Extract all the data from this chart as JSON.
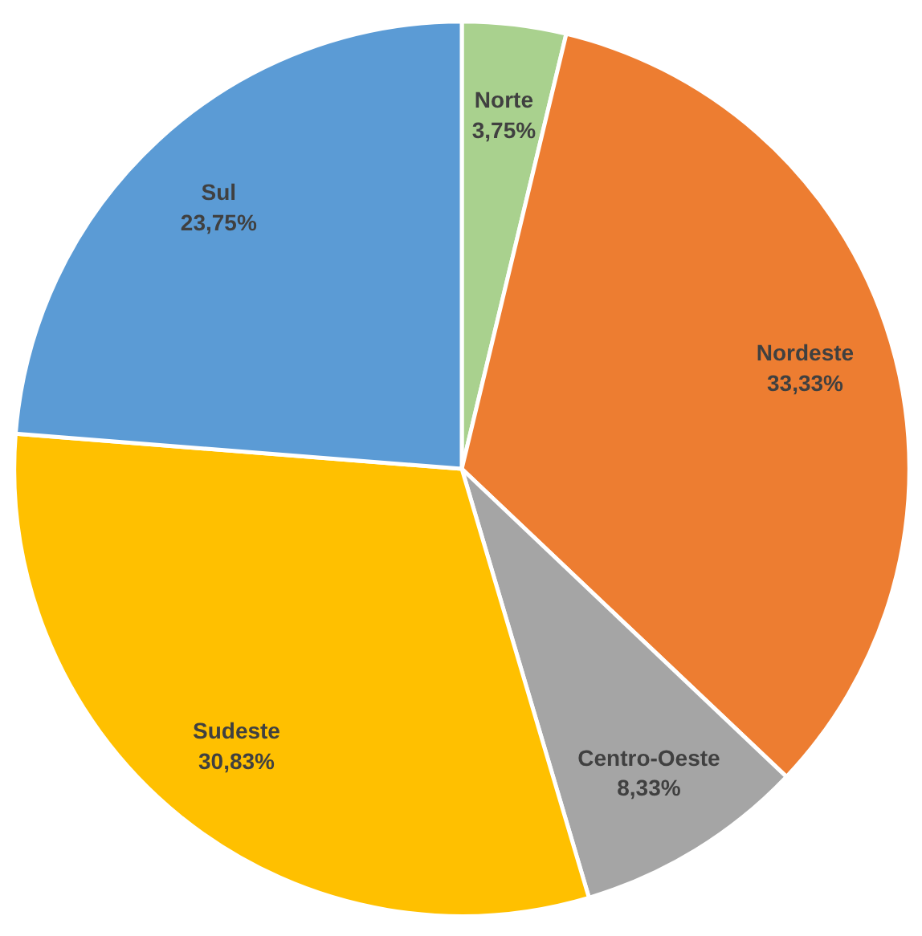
{
  "chart_data": {
    "type": "pie",
    "categories": [
      "Norte",
      "Nordeste",
      "Centro-Oeste",
      "Sudeste",
      "Sul"
    ],
    "values": [
      3.75,
      33.33,
      8.33,
      30.83,
      23.75
    ],
    "value_labels": [
      "3,75%",
      "33,33%",
      "8,33%",
      "30,83%",
      "23,75%"
    ],
    "colors": [
      "#a9d18e",
      "#ed7d31",
      "#a5a5a5",
      "#ffc000",
      "#5b9bd5"
    ]
  }
}
